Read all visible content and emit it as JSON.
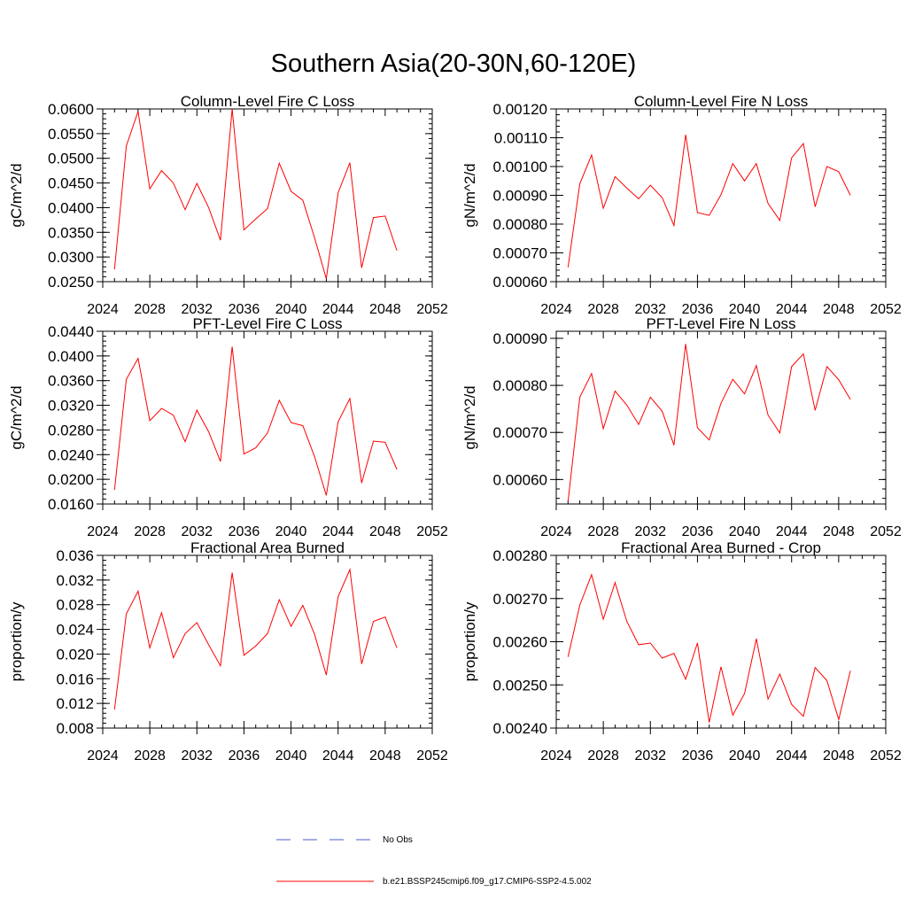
{
  "figure_title": "Southern Asia(20-30N,60-120E)",
  "chart_data": [
    {
      "type": "line",
      "title": "Column-Level Fire C Loss",
      "ylabel": "gC/m^2/d",
      "xlim": [
        2024,
        2052
      ],
      "ylim": [
        0.025,
        0.06
      ],
      "yticks": [
        "0.0250",
        "0.0300",
        "0.0350",
        "0.0400",
        "0.0450",
        "0.0500",
        "0.0550",
        "0.0600"
      ],
      "yticks_values": [
        0.025,
        0.03,
        0.035,
        0.04,
        0.045,
        0.05,
        0.055,
        0.06
      ],
      "xticks": [
        "2024",
        "2028",
        "2032",
        "2036",
        "2040",
        "2044",
        "2048",
        "2052"
      ],
      "x": [
        2025,
        2026,
        2027,
        2028,
        2029,
        2030,
        2031,
        2032,
        2033,
        2034,
        2035,
        2036,
        2037,
        2038,
        2039,
        2040,
        2041,
        2042,
        2043,
        2044,
        2045,
        2046,
        2047,
        2048,
        2049
      ],
      "series": [
        {
          "name": "b.e21.BSSP245cmip6.f09_g17.CMIP6-SSP2-4.5.002",
          "color": "#ff0000",
          "values": [
            0.0275,
            0.0525,
            0.0595,
            0.0438,
            0.0475,
            0.045,
            0.0396,
            0.0449,
            0.04,
            0.0334,
            0.06,
            0.0355,
            0.0377,
            0.0398,
            0.049,
            0.0433,
            0.0415,
            0.0339,
            0.0256,
            0.043,
            0.0491,
            0.0278,
            0.038,
            0.0383,
            0.0313
          ]
        }
      ]
    },
    {
      "type": "line",
      "title": "Column-Level Fire N Loss",
      "ylabel": "gN/m^2/d",
      "xlim": [
        2024,
        2052
      ],
      "ylim": [
        0.0006,
        0.0012
      ],
      "yticks": [
        "0.00060",
        "0.00070",
        "0.00080",
        "0.00090",
        "0.00100",
        "0.00110",
        "0.00120"
      ],
      "yticks_values": [
        0.0006,
        0.0007,
        0.0008,
        0.0009,
        0.001,
        0.0011,
        0.0012
      ],
      "xticks": [
        "2024",
        "2028",
        "2032",
        "2036",
        "2040",
        "2044",
        "2048",
        "2052"
      ],
      "x": [
        2025,
        2026,
        2027,
        2028,
        2029,
        2030,
        2031,
        2032,
        2033,
        2034,
        2035,
        2036,
        2037,
        2038,
        2039,
        2040,
        2041,
        2042,
        2043,
        2044,
        2045,
        2046,
        2047,
        2048,
        2049
      ],
      "series": [
        {
          "name": "b.e21.BSSP245cmip6.f09_g17.CMIP6-SSP2-4.5.002",
          "color": "#ff0000",
          "values": [
            0.00065,
            0.00094,
            0.00104,
            0.000855,
            0.000965,
            0.000925,
            0.000888,
            0.000935,
            0.000892,
            0.000795,
            0.00111,
            0.00084,
            0.00083,
            0.000902,
            0.00101,
            0.00095,
            0.00101,
            0.000872,
            0.000813,
            0.00103,
            0.00108,
            0.00086,
            0.001,
            0.000982,
            0.0009
          ]
        }
      ]
    },
    {
      "type": "line",
      "title": "PFT-Level Fire C Loss",
      "ylabel": "gC/m^2/d",
      "xlim": [
        2024,
        2052
      ],
      "ylim": [
        0.016,
        0.044
      ],
      "yticks": [
        "0.0160",
        "0.0200",
        "0.0240",
        "0.0280",
        "0.0320",
        "0.0360",
        "0.0400",
        "0.0440"
      ],
      "yticks_values": [
        0.016,
        0.02,
        0.024,
        0.028,
        0.032,
        0.036,
        0.04,
        0.044
      ],
      "xticks": [
        "2024",
        "2028",
        "2032",
        "2036",
        "2040",
        "2044",
        "2048",
        "2052"
      ],
      "x": [
        2025,
        2026,
        2027,
        2028,
        2029,
        2030,
        2031,
        2032,
        2033,
        2034,
        2035,
        2036,
        2037,
        2038,
        2039,
        2040,
        2041,
        2042,
        2043,
        2044,
        2045,
        2046,
        2047,
        2048,
        2049
      ],
      "series": [
        {
          "name": "b.e21.BSSP245cmip6.f09_g17.CMIP6-SSP2-4.5.002",
          "color": "#ff0000",
          "values": [
            0.0183,
            0.0362,
            0.0396,
            0.0295,
            0.0315,
            0.0304,
            0.0261,
            0.0312,
            0.0277,
            0.0229,
            0.0415,
            0.0241,
            0.0251,
            0.0275,
            0.0328,
            0.0292,
            0.0287,
            0.0237,
            0.0174,
            0.0293,
            0.0331,
            0.0194,
            0.0262,
            0.026,
            0.0216
          ]
        }
      ]
    },
    {
      "type": "line",
      "title": "PFT-Level Fire N Loss",
      "ylabel": "gN/m^2/d",
      "xlim": [
        2024,
        2052
      ],
      "ylim": [
        0.000548,
        0.000915
      ],
      "yticks": [
        "0.00060",
        "0.00070",
        "0.00080",
        "0.00090"
      ],
      "yticks_values": [
        0.0006,
        0.0007,
        0.0008,
        0.0009
      ],
      "xticks": [
        "2024",
        "2028",
        "2032",
        "2036",
        "2040",
        "2044",
        "2048",
        "2052"
      ],
      "x": [
        2025,
        2026,
        2027,
        2028,
        2029,
        2030,
        2031,
        2032,
        2033,
        2034,
        2035,
        2036,
        2037,
        2038,
        2039,
        2040,
        2041,
        2042,
        2043,
        2044,
        2045,
        2046,
        2047,
        2048,
        2049
      ],
      "series": [
        {
          "name": "b.e21.BSSP245cmip6.f09_g17.CMIP6-SSP2-4.5.002",
          "color": "#ff0000",
          "values": [
            0.000553,
            0.000775,
            0.000825,
            0.000708,
            0.000788,
            0.000758,
            0.000717,
            0.000775,
            0.000745,
            0.000673,
            0.000888,
            0.00071,
            0.000684,
            0.000762,
            0.000813,
            0.000782,
            0.000842,
            0.000737,
            0.000699,
            0.00084,
            0.000867,
            0.000747,
            0.00084,
            0.000812,
            0.00077
          ]
        }
      ]
    },
    {
      "type": "line",
      "title": "Fractional Area Burned",
      "ylabel": "proportion/y",
      "xlim": [
        2024,
        2052
      ],
      "ylim": [
        0.008,
        0.036
      ],
      "yticks": [
        "0.008",
        "0.012",
        "0.016",
        "0.020",
        "0.024",
        "0.028",
        "0.032",
        "0.036"
      ],
      "yticks_values": [
        0.008,
        0.012,
        0.016,
        0.02,
        0.024,
        0.028,
        0.032,
        0.036
      ],
      "xticks": [
        "2024",
        "2028",
        "2032",
        "2036",
        "2040",
        "2044",
        "2048",
        "2052"
      ],
      "x": [
        2025,
        2026,
        2027,
        2028,
        2029,
        2030,
        2031,
        2032,
        2033,
        2034,
        2035,
        2036,
        2037,
        2038,
        2039,
        2040,
        2041,
        2042,
        2043,
        2044,
        2045,
        2046,
        2047,
        2048,
        2049
      ],
      "series": [
        {
          "name": "b.e21.BSSP245cmip6.f09_g17.CMIP6-SSP2-4.5.002",
          "color": "#ff0000",
          "values": [
            0.011,
            0.0265,
            0.0302,
            0.021,
            0.0267,
            0.0194,
            0.0233,
            0.0251,
            0.0215,
            0.0181,
            0.0332,
            0.0198,
            0.0213,
            0.0233,
            0.0288,
            0.0245,
            0.0279,
            0.0232,
            0.0166,
            0.0293,
            0.0337,
            0.0184,
            0.0253,
            0.026,
            0.021
          ]
        }
      ]
    },
    {
      "type": "line",
      "title": "Fractional Area Burned - Crop",
      "ylabel": "proportion/y",
      "xlim": [
        2024,
        2052
      ],
      "ylim": [
        0.0024,
        0.0028
      ],
      "yticks": [
        "0.00240",
        "0.00250",
        "0.00260",
        "0.00270",
        "0.00280"
      ],
      "yticks_values": [
        0.0024,
        0.0025,
        0.0026,
        0.0027,
        0.0028
      ],
      "xticks": [
        "2024",
        "2028",
        "2032",
        "2036",
        "2040",
        "2044",
        "2048",
        "2052"
      ],
      "x": [
        2025,
        2026,
        2027,
        2028,
        2029,
        2030,
        2031,
        2032,
        2033,
        2034,
        2035,
        2036,
        2037,
        2038,
        2039,
        2040,
        2041,
        2042,
        2043,
        2044,
        2045,
        2046,
        2047,
        2048,
        2049
      ],
      "series": [
        {
          "name": "b.e21.BSSP245cmip6.f09_g17.CMIP6-SSP2-4.5.002",
          "color": "#ff0000",
          "values": [
            0.002565,
            0.002685,
            0.002755,
            0.002652,
            0.002737,
            0.002647,
            0.002593,
            0.002597,
            0.002562,
            0.002573,
            0.002513,
            0.002597,
            0.002413,
            0.002542,
            0.00243,
            0.00248,
            0.002607,
            0.002467,
            0.002525,
            0.002455,
            0.002427,
            0.00254,
            0.00251,
            0.00242,
            0.002533
          ]
        }
      ]
    }
  ],
  "legend": [
    {
      "label": "No Obs",
      "color": "#4a5bd0",
      "style": "dashed"
    },
    {
      "label": "b.e21.BSSP245cmip6.f09_g17.CMIP6-SSP2-4.5.002",
      "color": "#ff0000",
      "style": "solid"
    }
  ]
}
